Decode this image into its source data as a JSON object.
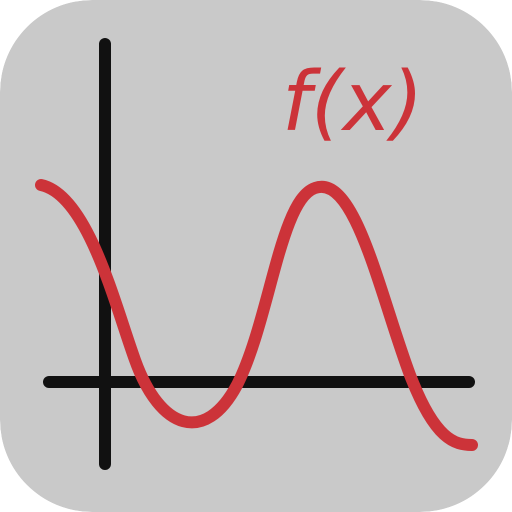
{
  "icon": {
    "label": "f(x)",
    "colors": {
      "background": "#c9c9c9",
      "axes": "#111111",
      "curve": "#cc3339",
      "label": "#cc3339"
    }
  }
}
